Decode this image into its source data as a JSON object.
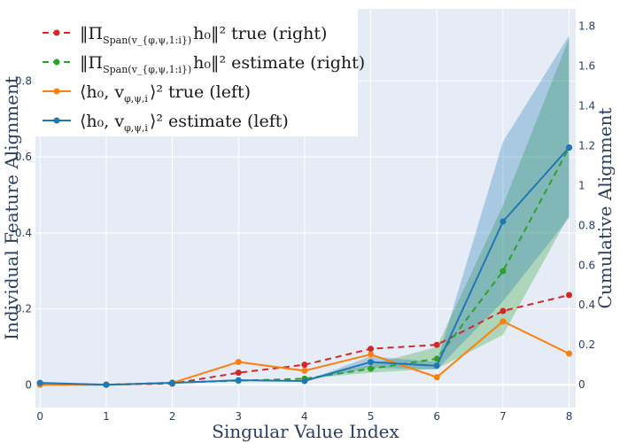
{
  "chart_data": {
    "type": "line",
    "title": "",
    "xlabel": "Singular Value Index",
    "ylabel": "Individual Feature Alignment",
    "y2label": "Cumulative Alignment",
    "x": [
      0,
      1,
      2,
      3,
      4,
      5,
      6,
      7,
      8
    ],
    "xticks": [
      "0",
      "1",
      "2",
      "3",
      "4",
      "5",
      "6",
      "7",
      "8"
    ],
    "xlim": [
      -0.07,
      8.1
    ],
    "ylim": [
      -0.06,
      0.99
    ],
    "yticks": [
      "0",
      "0.2",
      "0.4",
      "0.6",
      "0.8"
    ],
    "y2lim": [
      -0.115,
      1.887
    ],
    "y2ticks": [
      "0",
      "0.2",
      "0.4",
      "0.6",
      "0.8",
      "1",
      "1.2",
      "1.4",
      "1.6",
      "1.8"
    ],
    "grid": true,
    "legend_position": "top-left",
    "series": [
      {
        "name": "proj-true-right",
        "legend_main": "‖Π",
        "legend_sub": "Span(v_{φ,ψ,1:i})",
        "legend_tail": "h₀‖² true (right)",
        "axis": "right",
        "color": "#d62728",
        "dash": true,
        "values": [
          0.0,
          0.0,
          0.005,
          0.06,
          0.1,
          0.18,
          0.2,
          0.37,
          0.45
        ]
      },
      {
        "name": "proj-estimate-right",
        "legend_main": "‖Π",
        "legend_sub": "Span(v_{φ,ψ,1:i})",
        "legend_tail": "h₀‖² estimate (right)",
        "axis": "right",
        "color": "#2ca02c",
        "dash": true,
        "values": [
          0.005,
          0.0,
          0.01,
          0.02,
          0.03,
          0.08,
          0.13,
          0.57,
          1.19
        ],
        "band_low": [
          0.005,
          0.0,
          0.01,
          0.02,
          0.03,
          0.06,
          0.08,
          0.25,
          0.85
        ],
        "band_high": [
          0.005,
          0.0,
          0.01,
          0.02,
          0.03,
          0.1,
          0.19,
          0.9,
          1.74
        ]
      },
      {
        "name": "inner-true-left",
        "legend_main": "⟨h₀, v",
        "legend_sub": "φ,ψ,i",
        "legend_tail": "⟩² true (left)",
        "axis": "left",
        "color": "#ff7f0e",
        "dash": false,
        "values": [
          0.0,
          0.0,
          0.005,
          0.06,
          0.037,
          0.08,
          0.02,
          0.167,
          0.082
        ]
      },
      {
        "name": "inner-estimate-left",
        "legend_main": "⟨h₀, v",
        "legend_sub": "φ,ψ,i",
        "legend_tail": "⟩² estimate (left)",
        "axis": "left",
        "color": "#1f77b4",
        "dash": false,
        "values": [
          0.005,
          0.0,
          0.005,
          0.012,
          0.01,
          0.06,
          0.05,
          0.43,
          0.625
        ],
        "band_low": [
          0.005,
          0.0,
          0.005,
          0.012,
          0.01,
          0.045,
          0.04,
          0.22,
          0.44
        ],
        "band_high": [
          0.005,
          0.0,
          0.005,
          0.012,
          0.01,
          0.075,
          0.06,
          0.64,
          0.92
        ]
      }
    ]
  }
}
